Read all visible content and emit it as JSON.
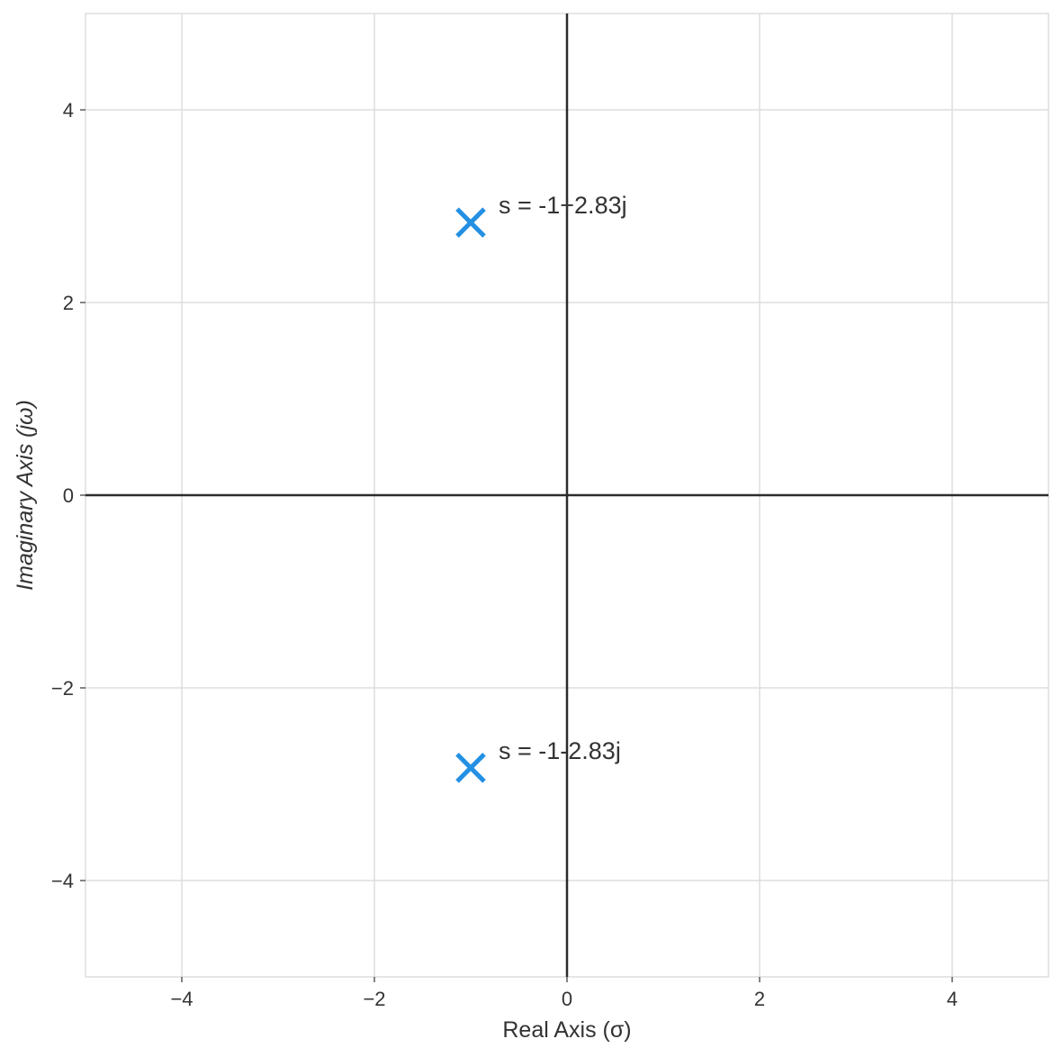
{
  "chart_data": {
    "type": "scatter",
    "title": "",
    "xlabel": "Real Axis (σ)",
    "ylabel": "Imaginary Axis (jω)",
    "xlim": [
      -5,
      5
    ],
    "ylim": [
      -5,
      5
    ],
    "grid": true,
    "x_ticks": [
      -4,
      -2,
      0,
      2,
      4
    ],
    "y_ticks": [
      -4,
      -2,
      0,
      2,
      4
    ],
    "x_tick_labels": [
      "−4",
      "−2",
      "0",
      "2",
      "4"
    ],
    "y_tick_labels": [
      "−4",
      "−2",
      "0",
      "2",
      "4"
    ],
    "series": [
      {
        "marker": "x",
        "color": "#2490e3",
        "points": [
          {
            "x": -1,
            "y": 2.83,
            "label": "s = -1+2.83j"
          },
          {
            "x": -1,
            "y": -2.83,
            "label": "s = -1-2.83j"
          }
        ]
      }
    ],
    "colors": {
      "axis_line": "#2b2b2b",
      "grid": "#dddddd",
      "frame": "#dddddd",
      "text": "#333333"
    }
  }
}
